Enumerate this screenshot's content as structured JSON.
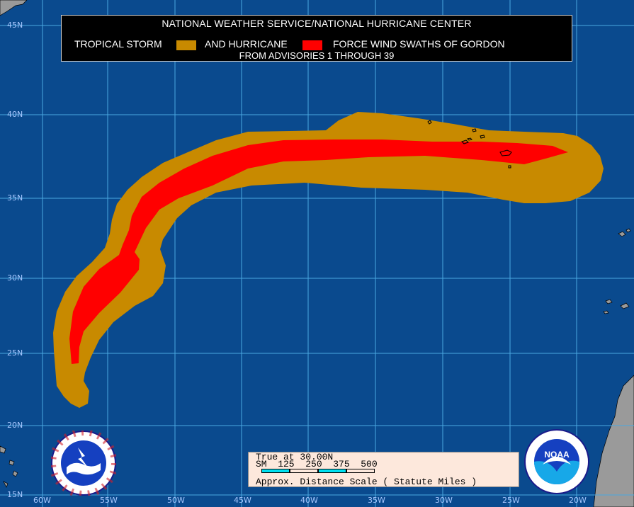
{
  "title": {
    "line1": "NATIONAL WEATHER SERVICE/NATIONAL HURRICANE CENTER",
    "legend_part1": "TROPICAL STORM",
    "legend_part2": "AND HURRICANE",
    "legend_part3": "FORCE WIND SWATHS OF GORDON",
    "line3": "FROM ADVISORIES 1 THROUGH 39"
  },
  "colors": {
    "ocean": "#0a4a8e",
    "tropical_storm": "#c88a00",
    "hurricane": "#ff0000",
    "grid": "#4aa8e0",
    "land": "#9a9a9a"
  },
  "latitudes": [
    "45N",
    "40N",
    "35N",
    "30N",
    "25N",
    "20N",
    "15N"
  ],
  "longitudes": [
    "60W",
    "55W",
    "50W",
    "45W",
    "40W",
    "35W",
    "30W",
    "25W",
    "20W"
  ],
  "scale": {
    "line1": "True at 30.00N",
    "line2": "SM  125  250  375  500",
    "line3": "Approx. Distance Scale ( Statute Miles )"
  },
  "logos": {
    "nws": "national-weather-service-logo",
    "noaa_text": "NOAA"
  }
}
